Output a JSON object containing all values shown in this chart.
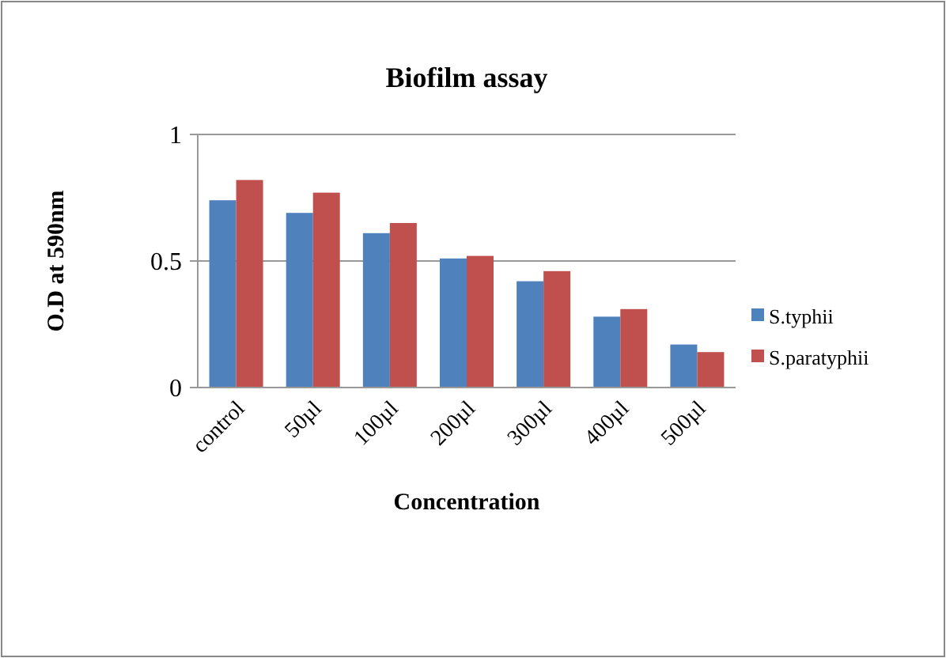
{
  "chart_data": {
    "type": "bar",
    "title": "Biofilm assay",
    "xlabel": "Concentration",
    "ylabel": "O.D at 590nm",
    "categories": [
      "control",
      "50µl",
      "100µl",
      "200µl",
      "300µl",
      "400µl",
      "500µl"
    ],
    "series": [
      {
        "name": "S.typhii",
        "color": "#4f81bd",
        "values": [
          0.74,
          0.69,
          0.61,
          0.51,
          0.42,
          0.28,
          0.17
        ]
      },
      {
        "name": "S.paratyphii",
        "color": "#c0504d",
        "values": [
          0.82,
          0.77,
          0.65,
          0.52,
          0.46,
          0.31,
          0.14
        ]
      }
    ],
    "ylim": [
      0,
      1
    ],
    "yticks": [
      0,
      0.5,
      1
    ],
    "grid": "y",
    "legend": "right"
  }
}
